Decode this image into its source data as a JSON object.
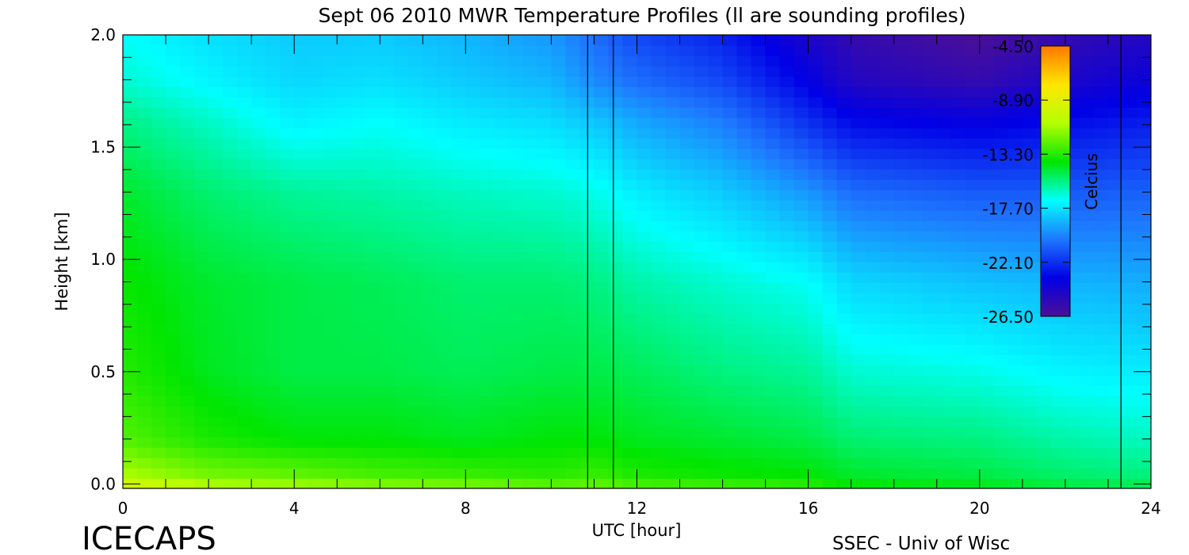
{
  "chart_data": {
    "type": "heatmap",
    "title": "Sept 06 2010 MWR Temperature Profiles (ll are sounding profiles)",
    "xlabel": "UTC [hour]",
    "ylabel": "Height [km]",
    "xlim": [
      0,
      24
    ],
    "ylim": [
      -0.02,
      2.0
    ],
    "x_ticks": [
      "0",
      "4",
      "8",
      "12",
      "16",
      "20",
      "24"
    ],
    "y_ticks": [
      "0.0",
      "0.5",
      "1.0",
      "1.5",
      "2.0"
    ],
    "colorbar": {
      "label": "Celcius",
      "ticks": [
        "-4.50",
        "-8.90",
        "-13.30",
        "-17.70",
        "-22.10",
        "-26.50"
      ],
      "range": [
        -26.5,
        -4.5
      ],
      "colormap": [
        "#4b0f96",
        "#0000e6",
        "#1e78ff",
        "#00ffff",
        "#00e600",
        "#b4ff00",
        "#ffe600",
        "#ff7800"
      ]
    },
    "sounding_times_utc": [
      10.85,
      11.45,
      23.3
    ],
    "temperature_profiles": {
      "heights_km": [
        0.0,
        0.05,
        0.2,
        0.5,
        0.9,
        1.3,
        1.6,
        1.8,
        2.0
      ],
      "times_utc": [
        0,
        2,
        4,
        6,
        8,
        10,
        11,
        12,
        14,
        16,
        17,
        20,
        22,
        24
      ],
      "celsius": [
        [
          -9.5,
          -11.0,
          -12.5,
          -13.3,
          -13.8,
          -14.5,
          -15.5,
          -16.5,
          -17.0
        ],
        [
          -11.0,
          -12.0,
          -13.5,
          -14.3,
          -14.5,
          -15.3,
          -16.3,
          -17.3,
          -17.8
        ],
        [
          -11.3,
          -12.3,
          -14.0,
          -14.8,
          -14.8,
          -15.8,
          -17.3,
          -18.0,
          -18.3
        ],
        [
          -11.8,
          -12.8,
          -14.0,
          -14.8,
          -15.0,
          -16.0,
          -17.0,
          -17.8,
          -18.3
        ],
        [
          -12.0,
          -13.0,
          -14.3,
          -15.0,
          -15.3,
          -16.3,
          -17.5,
          -18.3,
          -18.8
        ],
        [
          -12.5,
          -13.3,
          -14.0,
          -14.8,
          -15.3,
          -16.5,
          -17.8,
          -18.8,
          -19.5
        ],
        [
          -12.3,
          -13.0,
          -14.0,
          -14.8,
          -15.5,
          -16.8,
          -18.3,
          -19.8,
          -20.5
        ],
        [
          -12.8,
          -13.5,
          -14.3,
          -15.0,
          -16.0,
          -17.5,
          -19.0,
          -20.5,
          -21.5
        ],
        [
          -13.0,
          -13.8,
          -14.5,
          -15.5,
          -16.5,
          -18.3,
          -20.0,
          -21.5,
          -22.5
        ],
        [
          -13.3,
          -14.0,
          -14.8,
          -15.8,
          -17.0,
          -19.5,
          -22.0,
          -23.5,
          -24.5
        ],
        [
          -14.0,
          -14.5,
          -15.3,
          -16.5,
          -18.0,
          -20.5,
          -23.0,
          -24.8,
          -25.5
        ],
        [
          -14.3,
          -14.8,
          -15.5,
          -16.8,
          -18.5,
          -21.0,
          -23.5,
          -25.5,
          -26.5
        ],
        [
          -14.8,
          -15.3,
          -16.0,
          -17.3,
          -18.8,
          -21.0,
          -23.0,
          -24.5,
          -25.5
        ],
        [
          -15.0,
          -15.5,
          -16.3,
          -17.5,
          -19.0,
          -20.8,
          -22.5,
          -23.8,
          -24.8
        ]
      ]
    }
  },
  "footer": {
    "project": "ICECAPS",
    "credit": "SSEC - Univ of Wisc"
  }
}
